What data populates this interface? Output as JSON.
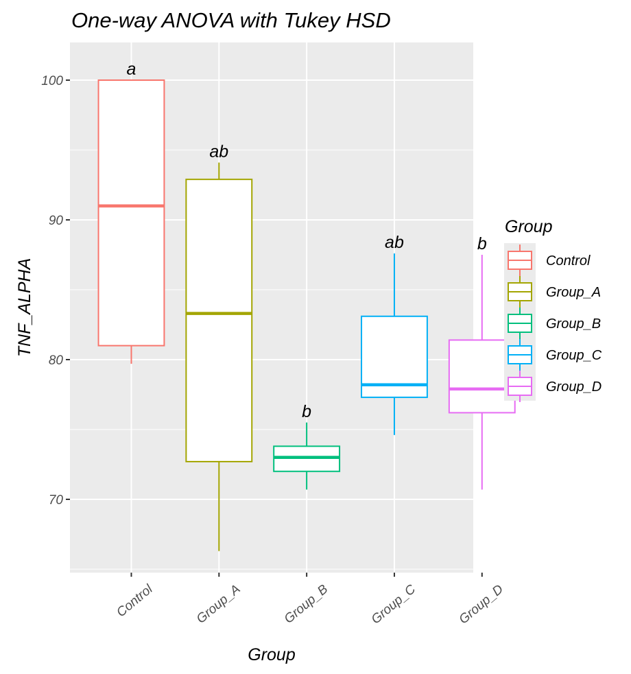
{
  "chart_data": {
    "type": "box",
    "title": "One-way ANOVA with Tukey HSD",
    "xlabel": "Group",
    "ylabel": "TNF_ALPHA",
    "ylim": [
      64.3,
      102.6
    ],
    "yticks": [
      70,
      80,
      90,
      100
    ],
    "grid": true,
    "legend_position": "right",
    "legend_title": "Group",
    "categories": [
      "Control",
      "Group_A",
      "Group_B",
      "Group_C",
      "Group_D"
    ],
    "colors": [
      "#F8766D",
      "#A3A500",
      "#00BF7D",
      "#00B0F6",
      "#E76BF3"
    ],
    "boxes": [
      {
        "group": "Control",
        "min": 79.7,
        "q1": 81.0,
        "median": 91.0,
        "q3": 100.0,
        "max": 100.0,
        "letter": "a"
      },
      {
        "group": "Group_A",
        "min": 66.3,
        "q1": 72.7,
        "median": 83.3,
        "q3": 92.9,
        "max": 94.1,
        "letter": "ab"
      },
      {
        "group": "Group_B",
        "min": 70.7,
        "q1": 72.0,
        "median": 73.0,
        "q3": 73.8,
        "max": 75.5,
        "letter": "b"
      },
      {
        "group": "Group_C",
        "min": 74.6,
        "q1": 77.3,
        "median": 78.2,
        "q3": 83.1,
        "max": 87.6,
        "letter": "ab"
      },
      {
        "group": "Group_D",
        "min": 70.7,
        "q1": 76.2,
        "median": 77.9,
        "q3": 81.4,
        "max": 87.5,
        "letter": "b"
      }
    ]
  }
}
